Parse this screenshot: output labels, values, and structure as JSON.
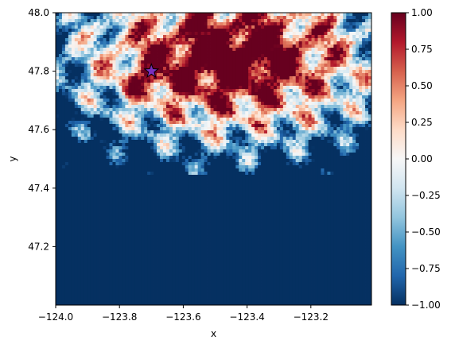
{
  "chart_data": {
    "type": "heatmap",
    "title": "",
    "xlabel": "x",
    "ylabel": "y",
    "xlim": [
      -124.0,
      -123.01
    ],
    "ylim": [
      47.0,
      48.0
    ],
    "xticks": [
      -124.0,
      -123.8,
      -123.6,
      -123.4,
      -123.2
    ],
    "xtick_labels": [
      "−124.0",
      "−123.8",
      "−123.6",
      "−123.4",
      "−123.2"
    ],
    "yticks": [
      47.2,
      47.4,
      47.6,
      47.8,
      48.0
    ],
    "ytick_labels": [
      "47.2",
      "47.4",
      "47.6",
      "47.8",
      "48.0"
    ],
    "colorbar": {
      "colormap": "RdBu_r",
      "vmin": -1.0,
      "vmax": 1.0,
      "ticks": [
        -1.0,
        -0.75,
        -0.5,
        -0.25,
        0.0,
        0.25,
        0.5,
        0.75,
        1.0
      ],
      "tick_labels": [
        "−1.00",
        "−0.75",
        "−0.50",
        "−0.25",
        "0.00",
        "0.25",
        "0.50",
        "0.75",
        "1.00"
      ]
    },
    "marker": {
      "type": "star",
      "x": -123.7,
      "y": 47.8,
      "color": "#7b2fbe"
    },
    "description_grid": {
      "cols": 100,
      "rows": 92,
      "note": "raster field: high values (~1) in northern mountainous region, low values (~-1) in south"
    }
  }
}
